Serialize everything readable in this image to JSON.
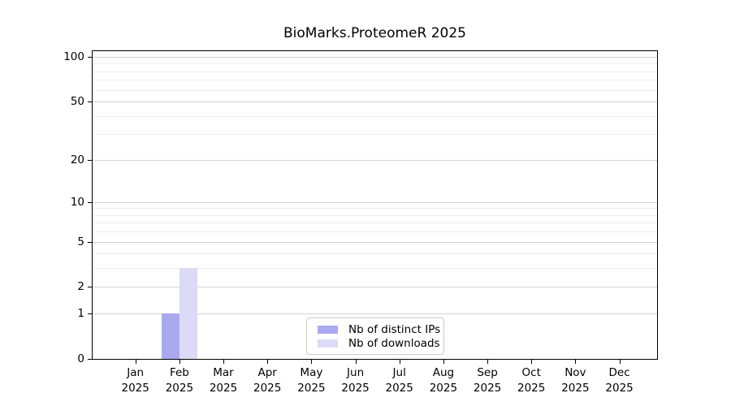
{
  "chart_data": {
    "type": "bar",
    "title": "BioMarks.ProteomeR 2025",
    "x_axis": {
      "months": [
        "Jan",
        "Feb",
        "Mar",
        "Apr",
        "May",
        "Jun",
        "Jul",
        "Aug",
        "Sep",
        "Oct",
        "Nov",
        "Dec"
      ],
      "year": "2025"
    },
    "y_axis": {
      "scale": "log1p",
      "tick_values": [
        0,
        1,
        2,
        5,
        10,
        20,
        50,
        100
      ],
      "minor_gridline_values": [
        3,
        4,
        6,
        7,
        8,
        9,
        30,
        40,
        60,
        70,
        80,
        90
      ],
      "max": 100
    },
    "series": [
      {
        "name": "Nb of distinct IPs",
        "color": "#a9a9f0",
        "values": [
          0,
          1,
          0,
          0,
          0,
          0,
          0,
          0,
          0,
          0,
          0,
          0
        ]
      },
      {
        "name": "Nb of downloads",
        "color": "#dbdbf7",
        "values": [
          0,
          3,
          0,
          0,
          0,
          0,
          0,
          0,
          0,
          0,
          0,
          0
        ]
      }
    ],
    "legend": {
      "position": "inside-bottom-center",
      "border_color": "#cccccc"
    },
    "grid": {
      "orientation": "horizontal",
      "major_color": "#d2d2d2",
      "minor_color": "#ededed"
    },
    "axis_color": "#000000",
    "background_color": "#ffffff"
  }
}
